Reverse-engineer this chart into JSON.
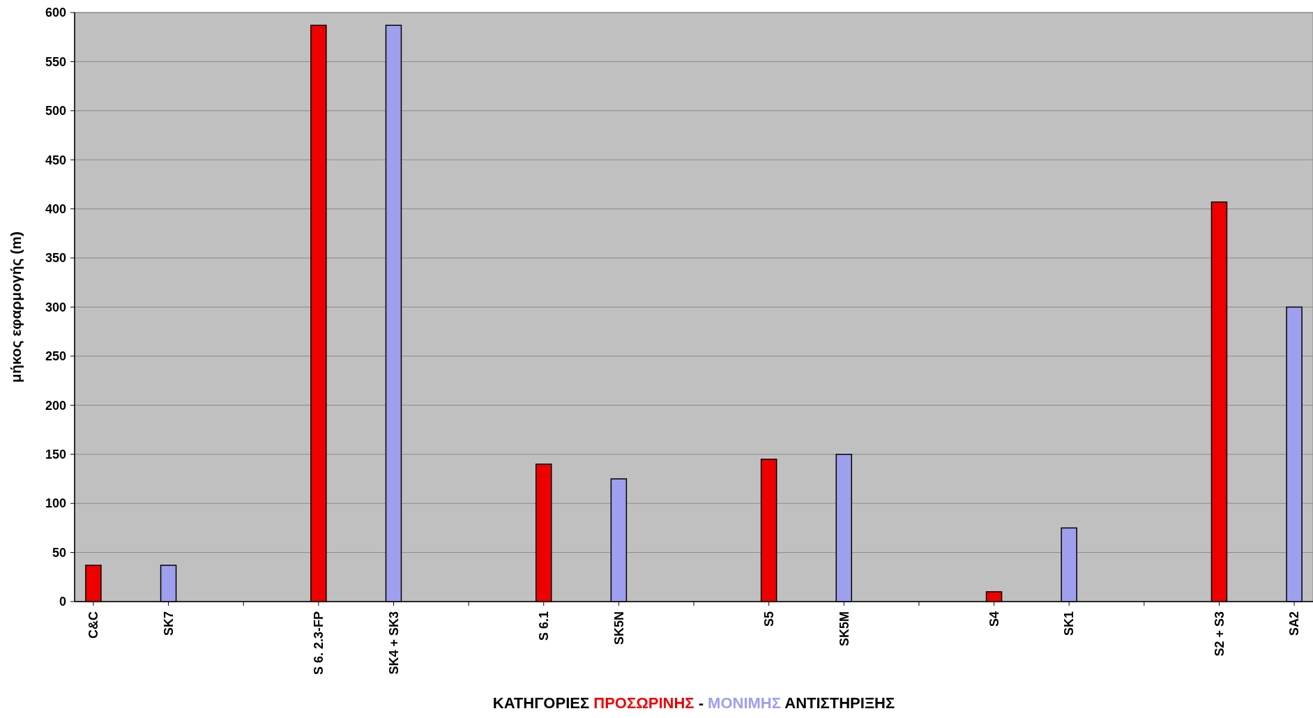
{
  "chart_data": {
    "type": "bar",
    "ylabel": "μήκος εφαρμογής (m)",
    "xlabel": "ΚΑΤΗΓΟΡΙΕΣ ΠΡΟΣΩΡΙΝΗΣ - ΜΟΝΙΜΗΣ ΑΝΤΙΣΤΗΡΙΞΗΣ",
    "categories": [
      "C&C",
      "SK7",
      null,
      "S 6. 2.3-FP",
      "SK4 + SK3",
      null,
      "S 6.1",
      "SK5N",
      null,
      "S5",
      "SK5M",
      null,
      "S4",
      "SK1",
      null,
      "S2 + S3",
      "SA2"
    ],
    "values": [
      37,
      37,
      null,
      587,
      587,
      null,
      140,
      125,
      null,
      145,
      150,
      null,
      10,
      75,
      null,
      407,
      300
    ],
    "colors": [
      "#ee0000",
      "#9f9fef",
      null,
      "#ee0000",
      "#9f9fef",
      null,
      "#ee0000",
      "#9f9fef",
      null,
      "#ee0000",
      "#9f9fef",
      null,
      "#ee0000",
      "#9f9fef",
      null,
      "#ee0000",
      "#9f9fef"
    ],
    "ylim": [
      0,
      600
    ],
    "yticks": [
      0,
      50,
      100,
      150,
      200,
      250,
      300,
      350,
      400,
      450,
      500,
      550,
      600
    ],
    "grid": "y"
  }
}
